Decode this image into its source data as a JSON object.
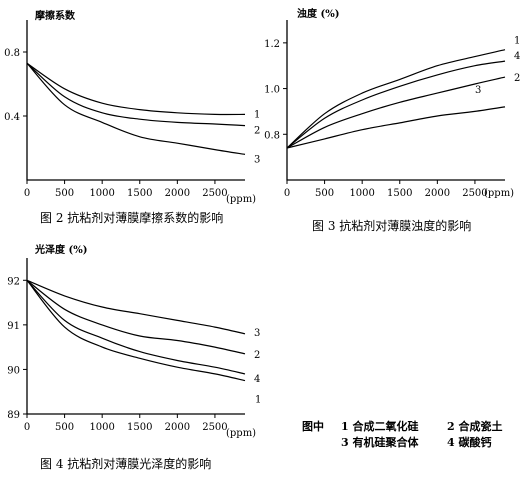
{
  "chart_data": [
    {
      "type": "line",
      "ylabel": "摩擦系数",
      "xunit": "(ppm)",
      "caption": "图 2 抗粘剂对薄膜摩擦系数的影响",
      "xlim": [
        0,
        2900
      ],
      "ylim": [
        0,
        1.0
      ],
      "xticks": [
        0,
        500,
        1000,
        1500,
        2000,
        2500
      ],
      "yticks": [
        0.4,
        0.8
      ],
      "series": [
        {
          "name": "1",
          "x": [
            0,
            500,
            1000,
            1500,
            2000,
            2500,
            2900
          ],
          "y": [
            0.73,
            0.57,
            0.48,
            0.44,
            0.42,
            0.41,
            0.41
          ]
        },
        {
          "name": "2",
          "x": [
            0,
            500,
            1000,
            1500,
            2000,
            2500,
            2900
          ],
          "y": [
            0.73,
            0.52,
            0.42,
            0.38,
            0.36,
            0.35,
            0.34
          ]
        },
        {
          "name": "3",
          "x": [
            0,
            500,
            1000,
            1500,
            2000,
            2500,
            2900
          ],
          "y": [
            0.73,
            0.47,
            0.36,
            0.27,
            0.23,
            0.19,
            0.16
          ]
        }
      ]
    },
    {
      "type": "line",
      "ylabel": "浊度 (%)",
      "xunit": "(ppm)",
      "caption": "图 3 抗粘剂对薄膜浊度的影响",
      "xlim": [
        0,
        2900
      ],
      "ylim": [
        0.6,
        1.3
      ],
      "xticks": [
        0,
        500,
        1000,
        1500,
        2000,
        2500
      ],
      "yticks": [
        0.8,
        1.0,
        1.2
      ],
      "series": [
        {
          "name": "1",
          "x": [
            0,
            500,
            1000,
            1500,
            2000,
            2500,
            2900
          ],
          "y": [
            0.74,
            0.89,
            0.98,
            1.04,
            1.1,
            1.14,
            1.17
          ]
        },
        {
          "name": "4",
          "x": [
            0,
            500,
            1000,
            1500,
            2000,
            2500,
            2900
          ],
          "y": [
            0.74,
            0.87,
            0.95,
            1.01,
            1.06,
            1.1,
            1.12
          ]
        },
        {
          "name": "2",
          "x": [
            0,
            500,
            1000,
            1500,
            2000,
            2500,
            2900
          ],
          "y": [
            0.74,
            0.83,
            0.89,
            0.94,
            0.98,
            1.02,
            1.05
          ]
        },
        {
          "name": "3",
          "x": [
            0,
            500,
            1000,
            1500,
            2000,
            2500,
            2900
          ],
          "y": [
            0.74,
            0.78,
            0.82,
            0.85,
            0.88,
            0.9,
            0.92
          ]
        }
      ]
    },
    {
      "type": "line",
      "ylabel": "光泽度 (%)",
      "xunit": "(ppm)",
      "caption": "图 4 抗粘剂对薄膜光泽度的影响",
      "xlim": [
        0,
        2900
      ],
      "ylim": [
        89,
        92.5
      ],
      "xticks": [
        0,
        500,
        1000,
        1500,
        2000,
        2500
      ],
      "yticks": [
        89,
        90,
        91,
        92
      ],
      "series": [
        {
          "name": "3",
          "x": [
            0,
            500,
            1000,
            1500,
            2000,
            2500,
            2900
          ],
          "y": [
            92.0,
            91.65,
            91.4,
            91.25,
            91.1,
            90.95,
            90.8
          ]
        },
        {
          "name": "2",
          "x": [
            0,
            500,
            1000,
            1500,
            2000,
            2500,
            2900
          ],
          "y": [
            92.0,
            91.35,
            91.0,
            90.75,
            90.65,
            90.5,
            90.35
          ]
        },
        {
          "name": "4",
          "x": [
            0,
            500,
            1000,
            1500,
            2000,
            2500,
            2900
          ],
          "y": [
            92.0,
            91.1,
            90.7,
            90.4,
            90.2,
            90.05,
            89.9
          ]
        },
        {
          "name": "1",
          "x": [
            0,
            500,
            1000,
            1500,
            2000,
            2500,
            2900
          ],
          "y": [
            92.0,
            90.95,
            90.5,
            90.25,
            90.05,
            89.9,
            89.75
          ]
        }
      ]
    }
  ],
  "legend": {
    "prefix": "图中",
    "items": [
      "1  合成二氧化硅",
      "2  合成瓷土",
      "3  有机硅聚合体",
      "4  碳酸钙"
    ]
  }
}
